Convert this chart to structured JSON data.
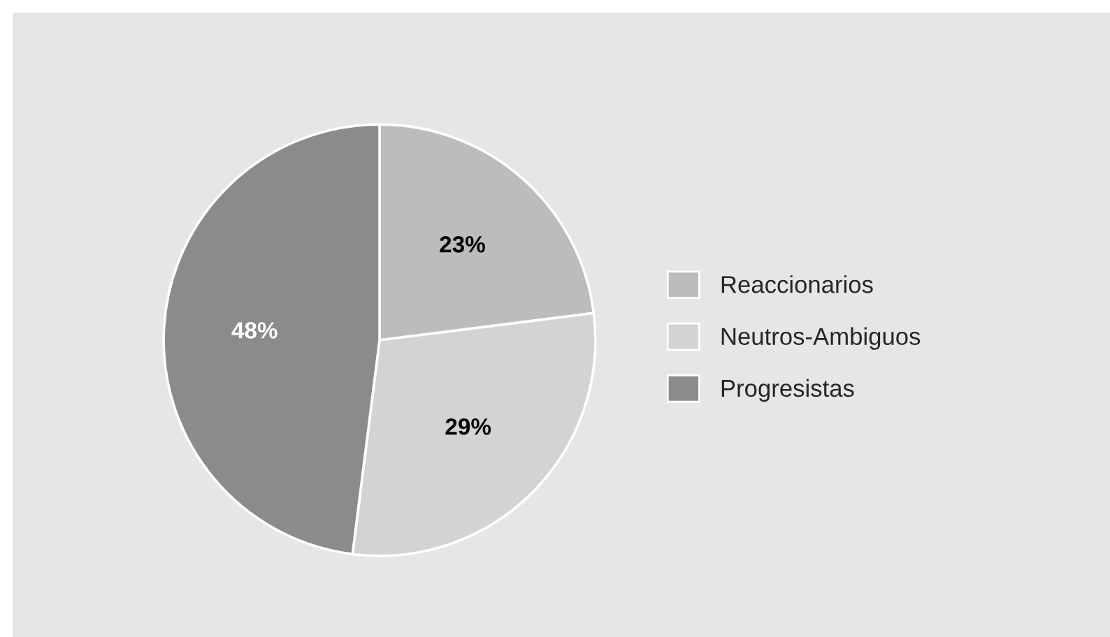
{
  "chart_data": {
    "type": "pie",
    "categories": [
      "Reaccionarios",
      "Neutros-Ambiguos",
      "Progresistas"
    ],
    "values": [
      23,
      29,
      48
    ],
    "colors": [
      "#bbbcbe",
      "#d2d3d5",
      "#8a8b8d"
    ],
    "value_labels": [
      "23%",
      "29%",
      "48%"
    ],
    "legend": "right"
  }
}
